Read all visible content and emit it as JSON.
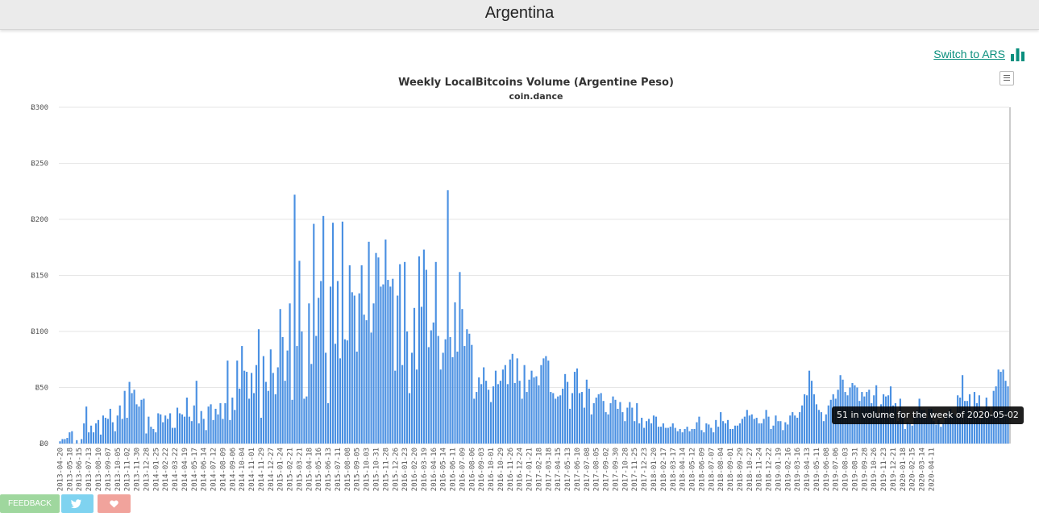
{
  "header": {
    "title": "Argentina"
  },
  "switch_link": {
    "label": "Switch to ARS"
  },
  "footer": {
    "feedback_label": "FEEDBACK"
  },
  "icons": {
    "chart": "bar-chart-icon",
    "menu": "hamburger-menu-icon",
    "twitter": "twitter-icon",
    "heart": "heart-icon"
  },
  "colors": {
    "bar": "#4a90e2",
    "link": "#0b8f7e",
    "feedback": "#9fd79e",
    "twitter": "#7fd3f0",
    "heart": "#f1a39c"
  },
  "tooltip": {
    "text": "51 in volume for the week of 2020-05-02"
  },
  "chart_data": {
    "type": "bar",
    "title": "Weekly LocalBitcoins Volume (Argentine Peso)",
    "subtitle": "coin.dance",
    "ylim": [
      0,
      300
    ],
    "y_ticks": [
      "Ƀ0",
      "Ƀ50",
      "Ƀ100",
      "Ƀ150",
      "Ƀ200",
      "Ƀ250",
      "Ƀ300"
    ],
    "x_start": "2013-04-20",
    "x_tick_labels": [
      "2013-04-20",
      "2013-05-18",
      "2013-06-15",
      "2013-07-13",
      "2013-08-10",
      "2013-09-07",
      "2013-10-05",
      "2013-11-02",
      "2013-11-30",
      "2013-12-28",
      "2014-01-25",
      "2014-02-22",
      "2014-03-22",
      "2014-04-19",
      "2014-05-17",
      "2014-06-14",
      "2014-07-12",
      "2014-08-09",
      "2014-09-06",
      "2014-10-04",
      "2014-11-01",
      "2014-11-29",
      "2014-12-27",
      "2015-01-24",
      "2015-02-21",
      "2015-03-21",
      "2015-04-18",
      "2015-05-16",
      "2015-06-13",
      "2015-07-11",
      "2015-08-08",
      "2015-09-05",
      "2015-10-03",
      "2015-10-31",
      "2015-11-28",
      "2015-12-26",
      "2016-01-23",
      "2016-02-20",
      "2016-03-19",
      "2016-04-16",
      "2016-05-14",
      "2016-06-11",
      "2016-07-09",
      "2016-08-06",
      "2016-09-03",
      "2016-10-01",
      "2016-10-29",
      "2016-11-26",
      "2016-12-24",
      "2017-01-21",
      "2017-02-18",
      "2017-03-18",
      "2017-04-15",
      "2017-05-13",
      "2017-06-10",
      "2017-07-08",
      "2017-08-05",
      "2017-09-02",
      "2017-09-30",
      "2017-10-28",
      "2017-11-25",
      "2017-12-23",
      "2018-01-20",
      "2018-02-17",
      "2018-03-17",
      "2018-04-14",
      "2018-05-12",
      "2018-06-09",
      "2018-07-07",
      "2018-08-04",
      "2018-09-01",
      "2018-09-29",
      "2018-10-27",
      "2018-11-24",
      "2018-12-22",
      "2019-01-19",
      "2019-02-16",
      "2019-03-16",
      "2019-04-13",
      "2019-05-11",
      "2019-06-08",
      "2019-07-06",
      "2019-08-03",
      "2019-08-31",
      "2019-09-28",
      "2019-10-26",
      "2019-11-23",
      "2019-12-21",
      "2020-01-18",
      "2020-02-15",
      "2020-03-14",
      "2020-04-11"
    ],
    "values": [
      2,
      4,
      4,
      5,
      10,
      11,
      0,
      3,
      0,
      4,
      18,
      33,
      10,
      16,
      10,
      18,
      21,
      8,
      25,
      23,
      22,
      31,
      19,
      11,
      25,
      34,
      22,
      47,
      23,
      55,
      45,
      48,
      35,
      33,
      39,
      40,
      9,
      24,
      15,
      13,
      10,
      27,
      26,
      19,
      25,
      22,
      27,
      14,
      14,
      32,
      27,
      26,
      24,
      41,
      24,
      20,
      34,
      56,
      18,
      29,
      22,
      12,
      33,
      35,
      21,
      31,
      26,
      36,
      22,
      36,
      74,
      21,
      41,
      30,
      74,
      49,
      87,
      65,
      64,
      40,
      63,
      45,
      70,
      102,
      23,
      78,
      55,
      47,
      84,
      63,
      44,
      68,
      120,
      95,
      56,
      83,
      125,
      39,
      222,
      87,
      163,
      100,
      40,
      42,
      125,
      71,
      196,
      96,
      130,
      145,
      203,
      81,
      36,
      140,
      197,
      89,
      145,
      76,
      198,
      93,
      92,
      159,
      135,
      132,
      82,
      134,
      159,
      115,
      110,
      180,
      99,
      125,
      170,
      166,
      140,
      142,
      182,
      146,
      140,
      147,
      65,
      132,
      160,
      70,
      162,
      100,
      45,
      81,
      121,
      66,
      167,
      122,
      173,
      155,
      86,
      101,
      108,
      162,
      96,
      66,
      81,
      93,
      226,
      95,
      77,
      126,
      82,
      153,
      120,
      87,
      102,
      98,
      88,
      40,
      46,
      59,
      53,
      68,
      56,
      48,
      37,
      51,
      65,
      53,
      56,
      66,
      70,
      53,
      75,
      80,
      54,
      76,
      56,
      40,
      70,
      46,
      57,
      65,
      59,
      60,
      52,
      70,
      76,
      78,
      74,
      46,
      45,
      40,
      42,
      43,
      49,
      62,
      55,
      31,
      45,
      64,
      67,
      45,
      46,
      32,
      57,
      49,
      26,
      36,
      41,
      44,
      45,
      38,
      28,
      26,
      36,
      42,
      39,
      31,
      37,
      28,
      20,
      32,
      37,
      32,
      20,
      36,
      18,
      23,
      14,
      20,
      22,
      18,
      25,
      24,
      15,
      15,
      18,
      14,
      14,
      15,
      18,
      14,
      11,
      13,
      10,
      13,
      15,
      11,
      13,
      13,
      19,
      24,
      12,
      10,
      18,
      17,
      14,
      10,
      21,
      15,
      28,
      20,
      18,
      21,
      13,
      13,
      16,
      16,
      18,
      22,
      24,
      30,
      25,
      26,
      22,
      23,
      18,
      18,
      22,
      30,
      24,
      13,
      16,
      25,
      20,
      20,
      12,
      19,
      17,
      25,
      28,
      25,
      23,
      28,
      34,
      44,
      43,
      65,
      56,
      44,
      35,
      30,
      28,
      20,
      26,
      34,
      39,
      44,
      40,
      48,
      61,
      57,
      46,
      43,
      50,
      54,
      52,
      50,
      38,
      46,
      42,
      46,
      48,
      36,
      43,
      52,
      26,
      35,
      44,
      42,
      43,
      51,
      34,
      36,
      20,
      40,
      24,
      13,
      19,
      18,
      16,
      25,
      30,
      40,
      30,
      30,
      23,
      31,
      31,
      20,
      17,
      21,
      15,
      18,
      24,
      28,
      31,
      27,
      25,
      43,
      41,
      61,
      38,
      38,
      44,
      28,
      46,
      36,
      43,
      22,
      30,
      41,
      33,
      25,
      47,
      51,
      66,
      64,
      66,
      56,
      51
    ]
  }
}
